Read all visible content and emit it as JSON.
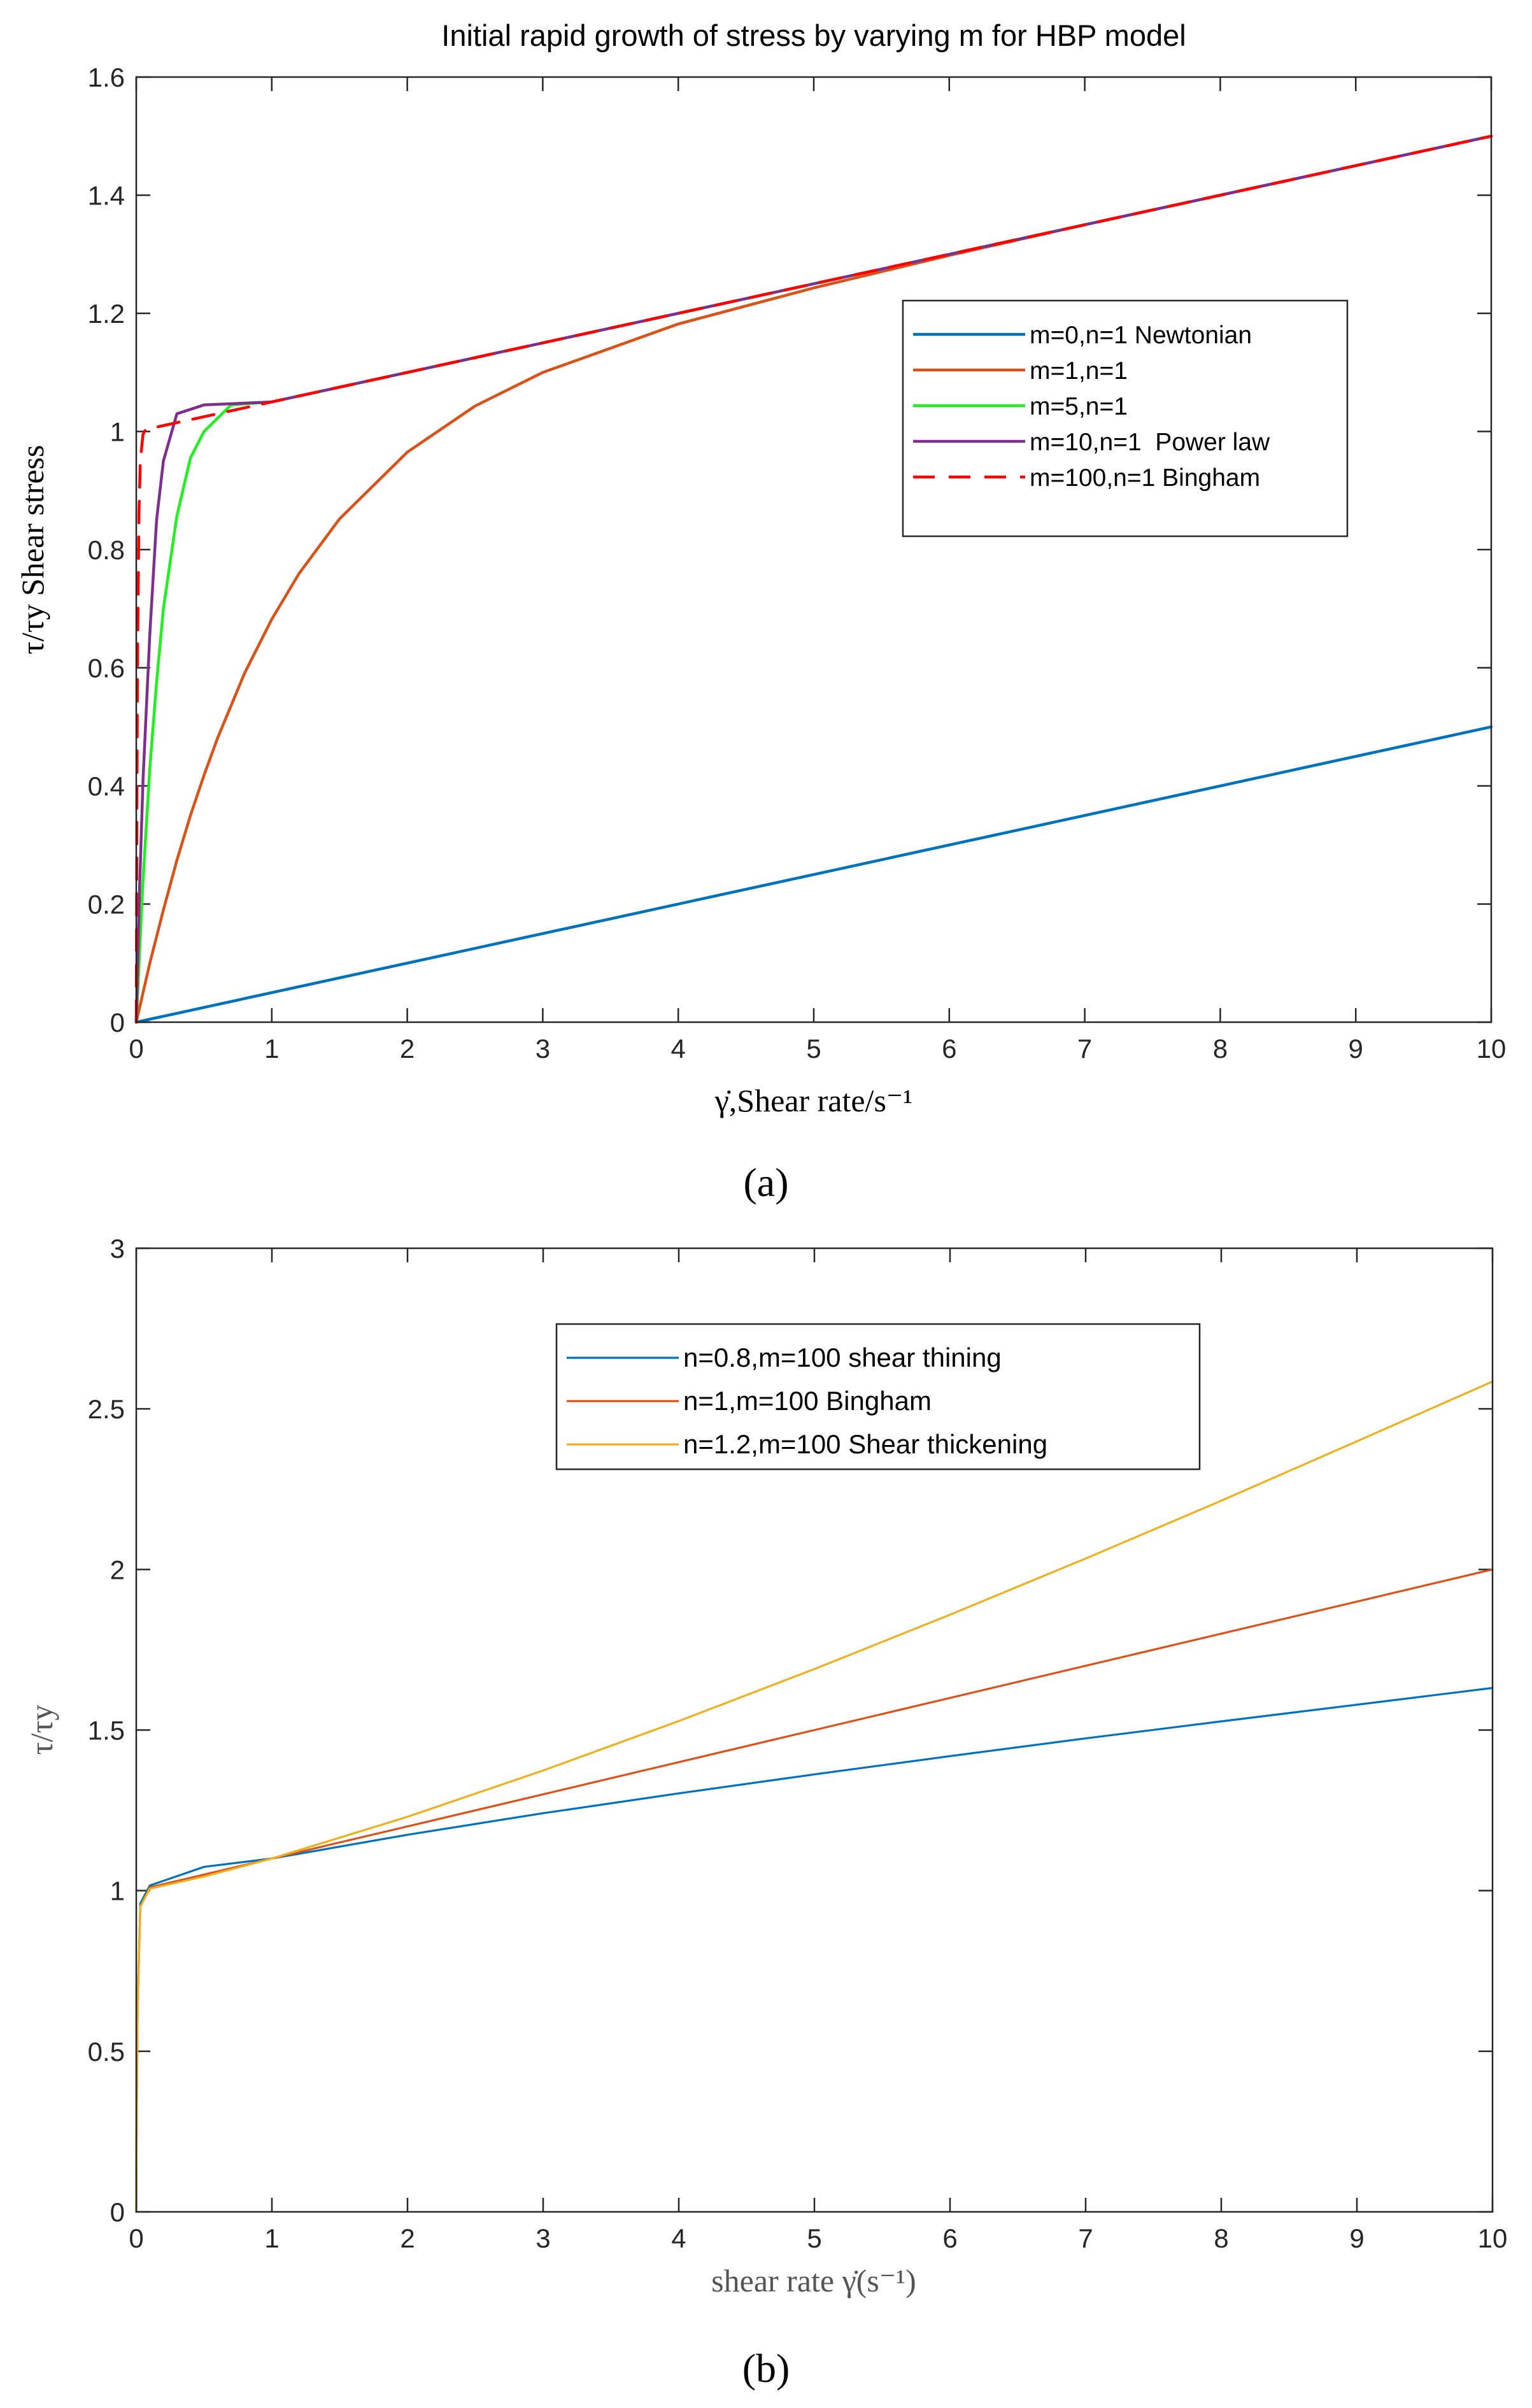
{
  "panel_labels": [
    "(a)",
    "(b)"
  ],
  "chart_data": [
    {
      "type": "line",
      "title": "Initial rapid growth of stress by varying m for HBP model",
      "xlabel": "γ̇,Shear rate/s⁻¹",
      "ylabel": "τ/τy Shear stress",
      "xlim": [
        0,
        10
      ],
      "ylim": [
        0,
        1.6
      ],
      "xticks": [
        0,
        1,
        2,
        3,
        4,
        5,
        6,
        7,
        8,
        9,
        10
      ],
      "yticks": [
        0,
        0.2,
        0.4,
        0.6,
        0.8,
        1,
        1.2,
        1.4,
        1.6
      ],
      "xtick_labels": [
        "0",
        "1",
        "2",
        "3",
        "4",
        "5",
        "6",
        "7",
        "8",
        "9",
        "10"
      ],
      "ytick_labels": [
        "0",
        "0.2",
        "0.4",
        "0.6",
        "0.8",
        "1",
        "1.2",
        "1.4",
        "1.6"
      ],
      "legend_position": "center-right",
      "series": [
        {
          "name": "m=0,n=1 Newtonian",
          "color": "#0072BD",
          "dash": "solid",
          "x": [
            0,
            10
          ],
          "y": [
            0,
            0.5
          ]
        },
        {
          "name": "m=1,n=1",
          "color": "#D95319",
          "dash": "solid",
          "x": [
            0,
            0.1,
            0.2,
            0.3,
            0.4,
            0.5,
            0.6,
            0.8,
            1,
            1.2,
            1.5,
            2,
            2.5,
            3,
            4,
            5,
            6,
            7,
            8,
            9,
            10
          ],
          "y": [
            0,
            0.1,
            0.19,
            0.274,
            0.35,
            0.418,
            0.481,
            0.591,
            0.682,
            0.759,
            0.852,
            0.965,
            1.043,
            1.1,
            1.182,
            1.243,
            1.298,
            1.35,
            1.4,
            1.45,
            1.5
          ]
        },
        {
          "name": "m=5,n=1",
          "color": "#22EE22",
          "dash": "solid",
          "x": [
            0,
            0.05,
            0.1,
            0.15,
            0.2,
            0.3,
            0.4,
            0.5,
            0.7,
            1,
            2,
            3,
            4,
            5,
            6,
            7,
            8,
            9,
            10
          ],
          "y": [
            0,
            0.24,
            0.43,
            0.575,
            0.7,
            0.857,
            0.955,
            1.0,
            1.045,
            1.05,
            1.1,
            1.15,
            1.2,
            1.25,
            1.3,
            1.35,
            1.4,
            1.45,
            1.5
          ]
        },
        {
          "name": "m=10,n=1  Power law",
          "color": "#7E2F8E",
          "dash": "solid",
          "x": [
            0,
            0.025,
            0.05,
            0.1,
            0.15,
            0.2,
            0.3,
            0.5,
            1,
            2,
            3,
            4,
            5,
            6,
            7,
            8,
            9,
            10
          ],
          "y": [
            0,
            0.23,
            0.41,
            0.657,
            0.85,
            0.95,
            1.03,
            1.045,
            1.05,
            1.1,
            1.15,
            1.2,
            1.25,
            1.3,
            1.35,
            1.4,
            1.45,
            1.5
          ]
        },
        {
          "name": "m=100,n=1 Bingham",
          "color": "#FF0000",
          "dash": "dashed",
          "x": [
            0,
            0.005,
            0.01,
            0.02,
            0.03,
            0.05,
            0.07,
            0.1,
            1,
            2,
            3,
            4,
            5,
            6,
            7,
            8,
            9,
            10
          ],
          "y": [
            0,
            0.39,
            0.63,
            0.865,
            0.951,
            0.995,
            1.004,
            1.005,
            1.05,
            1.1,
            1.15,
            1.2,
            1.25,
            1.3,
            1.35,
            1.4,
            1.45,
            1.5
          ]
        }
      ]
    },
    {
      "type": "line",
      "title": "",
      "xlabel": "shear rate γ̇(s⁻¹)",
      "ylabel": "τ/τy",
      "xlim": [
        0,
        10
      ],
      "ylim": [
        0,
        3
      ],
      "xticks": [
        0,
        1,
        2,
        3,
        4,
        5,
        6,
        7,
        8,
        9,
        10
      ],
      "yticks": [
        0,
        0.5,
        1,
        1.5,
        2,
        2.5,
        3
      ],
      "xtick_labels": [
        "0",
        "1",
        "2",
        "3",
        "4",
        "5",
        "6",
        "7",
        "8",
        "9",
        "10"
      ],
      "ytick_labels": [
        "0",
        "0.5",
        "1",
        "1.5",
        "2",
        "2.5",
        "3"
      ],
      "legend_position": "upper-right",
      "series": [
        {
          "name": "n=0.8,m=100 shear thining",
          "color": "#0072BD",
          "dash": "solid",
          "x": [
            0,
            0.003,
            0.01,
            0.03,
            0.1,
            0.5,
            1,
            2,
            3,
            4,
            5,
            6,
            7,
            8,
            9,
            10
          ],
          "y": [
            0,
            0.26,
            0.64,
            0.96,
            1.016,
            1.074,
            1.1,
            1.174,
            1.241,
            1.303,
            1.362,
            1.419,
            1.474,
            1.527,
            1.579,
            1.631
          ]
        },
        {
          "name": "n=1,m=100 Bingham",
          "color": "#D95319",
          "dash": "solid",
          "x": [
            0,
            0.003,
            0.01,
            0.03,
            0.1,
            1,
            2,
            3,
            4,
            5,
            6,
            7,
            8,
            9,
            10
          ],
          "y": [
            0,
            0.26,
            0.63,
            0.95,
            1.01,
            1.1,
            1.2,
            1.3,
            1.4,
            1.5,
            1.6,
            1.7,
            1.8,
            1.9,
            2.0
          ]
        },
        {
          "name": "n=1.2,m=100 Shear thickening",
          "color": "#EDB120",
          "dash": "solid",
          "x": [
            0,
            0.003,
            0.01,
            0.03,
            0.1,
            0.5,
            1,
            2,
            3,
            4,
            5,
            6,
            7,
            8,
            9,
            10
          ],
          "y": [
            0,
            0.26,
            0.63,
            0.95,
            1.006,
            1.044,
            1.1,
            1.23,
            1.374,
            1.528,
            1.69,
            1.859,
            2.034,
            2.214,
            2.399,
            2.585
          ]
        }
      ]
    }
  ]
}
